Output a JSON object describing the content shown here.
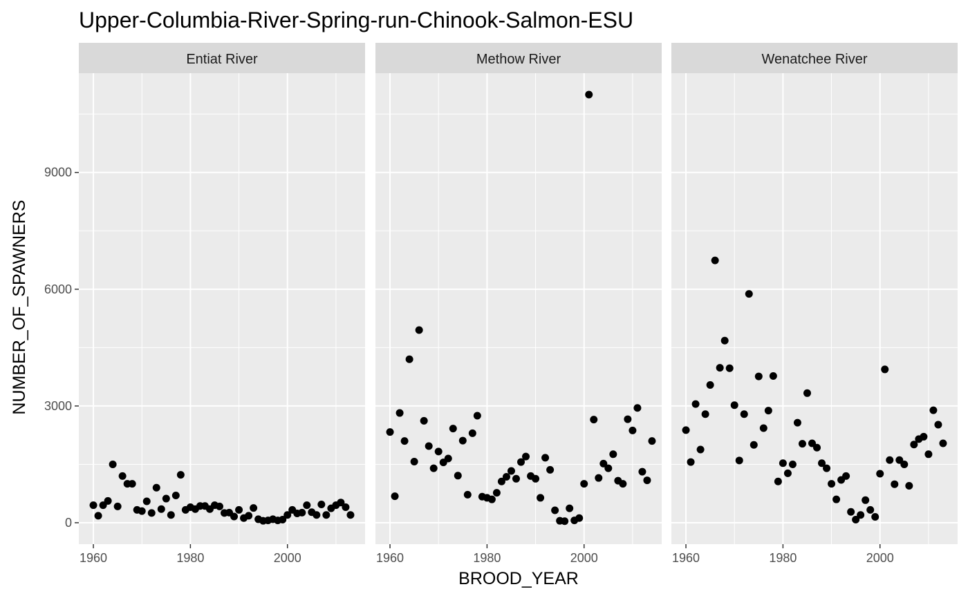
{
  "chart_data": {
    "type": "scatter",
    "title": "Upper-Columbia-River-Spring-run-Chinook-Salmon-ESU",
    "xlabel": "BROOD_YEAR",
    "ylabel": "NUMBER_OF_SPAWNERS",
    "xlim": [
      1957,
      2016
    ],
    "ylim": [
      -550,
      11550
    ],
    "x_ticks": [
      1960,
      1980,
      2000
    ],
    "y_ticks": [
      0,
      3000,
      6000,
      9000
    ],
    "grid": true,
    "legend": "none",
    "colors": {
      "panel_bg": "#EBEBEB",
      "strip_bg": "#D9D9D9",
      "grid": "#FFFFFF",
      "point": "#000000"
    },
    "facets": [
      {
        "name": "Entiat River",
        "points": [
          [
            1960,
            450
          ],
          [
            1961,
            180
          ],
          [
            1962,
            450
          ],
          [
            1963,
            560
          ],
          [
            1964,
            1500
          ],
          [
            1965,
            420
          ],
          [
            1966,
            1200
          ],
          [
            1967,
            1000
          ],
          [
            1968,
            1000
          ],
          [
            1969,
            330
          ],
          [
            1970,
            300
          ],
          [
            1971,
            550
          ],
          [
            1972,
            250
          ],
          [
            1973,
            900
          ],
          [
            1974,
            350
          ],
          [
            1975,
            620
          ],
          [
            1976,
            200
          ],
          [
            1977,
            700
          ],
          [
            1978,
            1230
          ],
          [
            1979,
            330
          ],
          [
            1980,
            400
          ],
          [
            1981,
            350
          ],
          [
            1982,
            430
          ],
          [
            1983,
            430
          ],
          [
            1984,
            350
          ],
          [
            1985,
            450
          ],
          [
            1986,
            420
          ],
          [
            1987,
            250
          ],
          [
            1988,
            260
          ],
          [
            1989,
            160
          ],
          [
            1990,
            330
          ],
          [
            1991,
            120
          ],
          [
            1992,
            180
          ],
          [
            1993,
            380
          ],
          [
            1994,
            90
          ],
          [
            1995,
            50
          ],
          [
            1996,
            60
          ],
          [
            1997,
            90
          ],
          [
            1998,
            60
          ],
          [
            1999,
            80
          ],
          [
            2000,
            200
          ],
          [
            2001,
            330
          ],
          [
            2002,
            240
          ],
          [
            2003,
            260
          ],
          [
            2004,
            450
          ],
          [
            2005,
            270
          ],
          [
            2006,
            200
          ],
          [
            2007,
            470
          ],
          [
            2008,
            200
          ],
          [
            2009,
            370
          ],
          [
            2010,
            450
          ],
          [
            2011,
            520
          ],
          [
            2012,
            400
          ],
          [
            2013,
            200
          ]
        ]
      },
      {
        "name": "Methow River",
        "points": [
          [
            1960,
            2330
          ],
          [
            1961,
            680
          ],
          [
            1962,
            2820
          ],
          [
            1963,
            2100
          ],
          [
            1964,
            4200
          ],
          [
            1965,
            1570
          ],
          [
            1966,
            4950
          ],
          [
            1967,
            2620
          ],
          [
            1968,
            1970
          ],
          [
            1969,
            1400
          ],
          [
            1970,
            1830
          ],
          [
            1971,
            1550
          ],
          [
            1972,
            1650
          ],
          [
            1973,
            2420
          ],
          [
            1974,
            1210
          ],
          [
            1975,
            2110
          ],
          [
            1976,
            720
          ],
          [
            1977,
            2300
          ],
          [
            1978,
            2750
          ],
          [
            1979,
            670
          ],
          [
            1980,
            640
          ],
          [
            1981,
            600
          ],
          [
            1982,
            770
          ],
          [
            1983,
            1060
          ],
          [
            1984,
            1180
          ],
          [
            1985,
            1330
          ],
          [
            1986,
            1130
          ],
          [
            1987,
            1560
          ],
          [
            1988,
            1700
          ],
          [
            1989,
            1200
          ],
          [
            1990,
            1130
          ],
          [
            1991,
            640
          ],
          [
            1992,
            1670
          ],
          [
            1993,
            1360
          ],
          [
            1994,
            320
          ],
          [
            1995,
            50
          ],
          [
            1996,
            40
          ],
          [
            1997,
            370
          ],
          [
            1998,
            60
          ],
          [
            1999,
            120
          ],
          [
            2000,
            1000
          ],
          [
            2001,
            11000
          ],
          [
            2002,
            2650
          ],
          [
            2003,
            1150
          ],
          [
            2004,
            1520
          ],
          [
            2005,
            1400
          ],
          [
            2006,
            1760
          ],
          [
            2007,
            1080
          ],
          [
            2008,
            1000
          ],
          [
            2009,
            2660
          ],
          [
            2010,
            2370
          ],
          [
            2011,
            2950
          ],
          [
            2012,
            1310
          ],
          [
            2013,
            1090
          ],
          [
            2014,
            2100
          ]
        ]
      },
      {
        "name": "Wenatchee River",
        "points": [
          [
            1960,
            2380
          ],
          [
            1961,
            1560
          ],
          [
            1962,
            3050
          ],
          [
            1963,
            1880
          ],
          [
            1964,
            2790
          ],
          [
            1965,
            3540
          ],
          [
            1966,
            6740
          ],
          [
            1967,
            3980
          ],
          [
            1968,
            4680
          ],
          [
            1969,
            3970
          ],
          [
            1970,
            3020
          ],
          [
            1971,
            1600
          ],
          [
            1972,
            2790
          ],
          [
            1973,
            5880
          ],
          [
            1974,
            2000
          ],
          [
            1975,
            3760
          ],
          [
            1976,
            2430
          ],
          [
            1977,
            2880
          ],
          [
            1978,
            3770
          ],
          [
            1979,
            1060
          ],
          [
            1980,
            1530
          ],
          [
            1981,
            1270
          ],
          [
            1982,
            1500
          ],
          [
            1983,
            2570
          ],
          [
            1984,
            2030
          ],
          [
            1985,
            3330
          ],
          [
            1986,
            2040
          ],
          [
            1987,
            1930
          ],
          [
            1988,
            1530
          ],
          [
            1989,
            1400
          ],
          [
            1990,
            1000
          ],
          [
            1991,
            600
          ],
          [
            1992,
            1100
          ],
          [
            1993,
            1200
          ],
          [
            1994,
            280
          ],
          [
            1995,
            80
          ],
          [
            1996,
            200
          ],
          [
            1997,
            580
          ],
          [
            1998,
            330
          ],
          [
            1999,
            150
          ],
          [
            2000,
            1260
          ],
          [
            2001,
            3940
          ],
          [
            2002,
            1610
          ],
          [
            2003,
            990
          ],
          [
            2004,
            1610
          ],
          [
            2005,
            1500
          ],
          [
            2006,
            950
          ],
          [
            2007,
            2010
          ],
          [
            2008,
            2150
          ],
          [
            2009,
            2210
          ],
          [
            2010,
            1760
          ],
          [
            2011,
            2890
          ],
          [
            2012,
            2520
          ],
          [
            2013,
            2040
          ]
        ]
      }
    ]
  }
}
